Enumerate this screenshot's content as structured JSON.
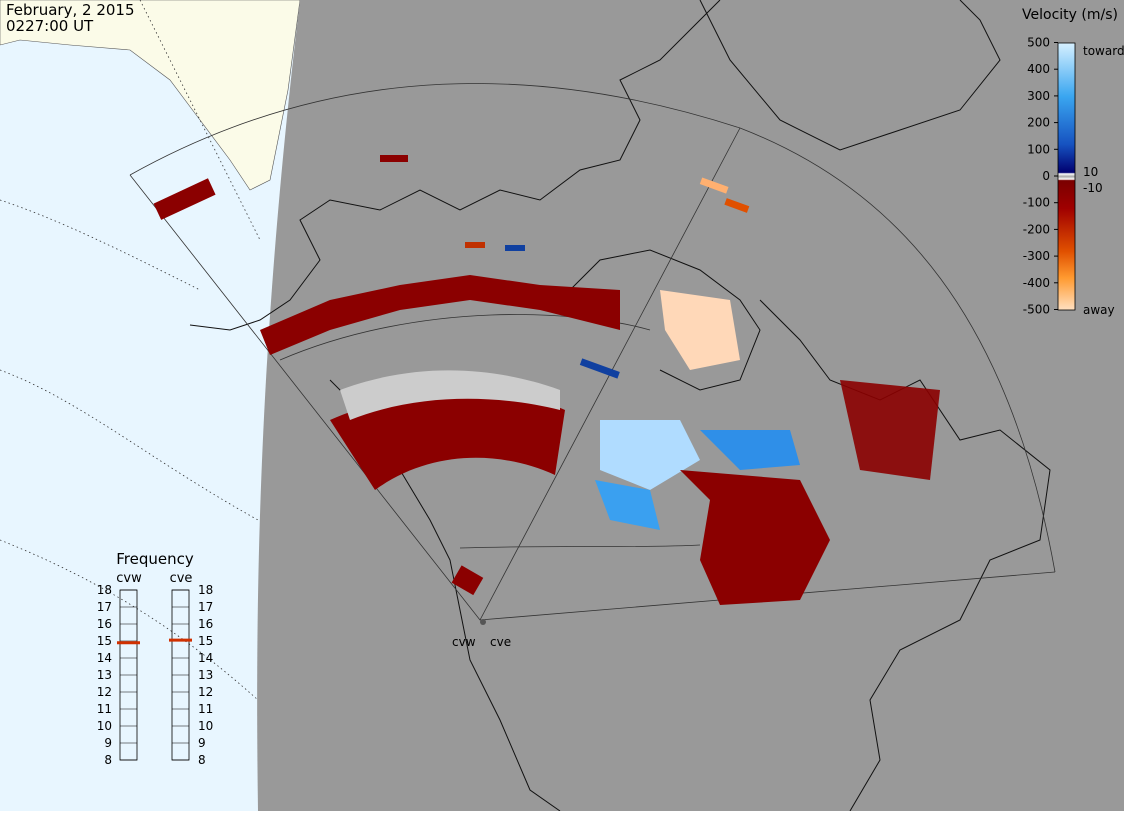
{
  "header": {
    "date": "February, 2 2015",
    "time": "0227:00 UT"
  },
  "velocity_scale": {
    "title": "Velocity (m/s)",
    "ticks": [
      500,
      400,
      300,
      200,
      100,
      0,
      -100,
      -200,
      -300,
      -400,
      -500
    ],
    "inner_ticks": [
      10,
      -10
    ],
    "toward_label": "toward",
    "away_label": "away"
  },
  "frequency": {
    "title": "Frequency",
    "ticks": [
      18,
      17,
      16,
      15,
      14,
      13,
      12,
      11,
      10,
      9,
      8
    ],
    "radars": [
      {
        "name": "cvw",
        "value": 14.9
      },
      {
        "name": "cve",
        "value": 15.05
      }
    ]
  },
  "radar_sites": [
    "cvw",
    "cve"
  ]
}
